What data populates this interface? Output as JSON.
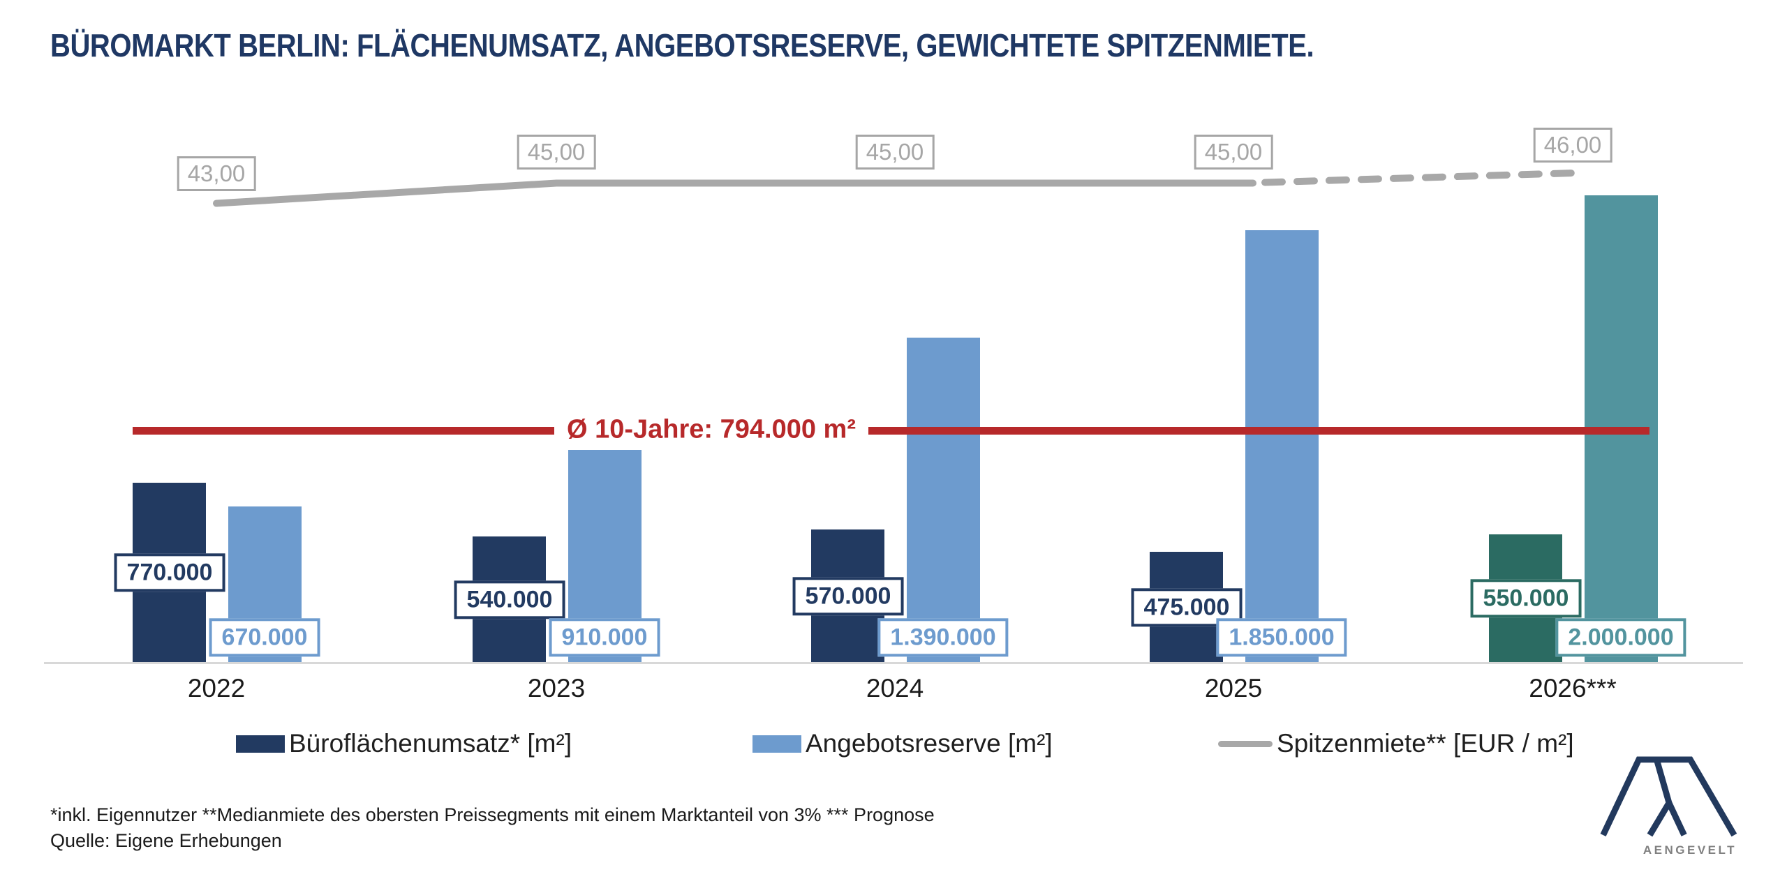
{
  "title": "BÜROMARKT BERLIN: FLÄCHENUMSATZ, ANGEBOTSRESERVE, GEWICHTETE SPITZENMIETE.",
  "chart_data": {
    "type": "bar+line combo",
    "categories": [
      "2022",
      "2023",
      "2024",
      "2025",
      "2026***"
    ],
    "series": [
      {
        "name": "Büroflächenumsatz* [m²]",
        "type": "bar",
        "values": [
          770000,
          540000,
          570000,
          475000,
          550000
        ],
        "labels": [
          "770.000",
          "540.000",
          "570.000",
          "475.000",
          "550.000"
        ],
        "color": "#223A61",
        "forecast_color": "#2B6B62"
      },
      {
        "name": "Angebotsreserve [m²]",
        "type": "bar",
        "values": [
          670000,
          910000,
          1390000,
          1850000,
          2000000
        ],
        "labels": [
          "670.000",
          "910.000",
          "1.390.000",
          "1.850.000",
          "2.000.000"
        ],
        "color": "#6D9BCE",
        "forecast_color": "#52949E"
      },
      {
        "name": "Spitzenmiete** [EUR / m²]",
        "type": "line",
        "values": [
          43,
          45,
          45,
          45,
          46
        ],
        "labels": [
          "43,00",
          "45,00",
          "45,00",
          "45,00",
          "46,00"
        ],
        "color": "#A8A8A8",
        "dashed_segment": "2025 to 2026*** (Prognose)"
      }
    ],
    "average_line": {
      "label": "Ø 10-Jahre: 794.000 m²",
      "value": 794000,
      "color": "#B7292A"
    },
    "forecast_category": "2026***",
    "grid": false,
    "legend_position": "bottom",
    "y_axis_visible": false
  },
  "legend": {
    "items": [
      {
        "label": "Büroflächenumsatz* [m²]",
        "swatch": "navy-rect"
      },
      {
        "label": "Angebotsreserve [m²]",
        "swatch": "lightblue-rect"
      },
      {
        "label": "Spitzenmiete** [EUR / m²]",
        "swatch": "gray-line"
      }
    ]
  },
  "footnotes": {
    "line1": "*inkl. Eigennutzer **Medianmiete des obersten Preissegments mit einem Marktanteil von 3% *** Prognose",
    "line2": "Quelle: Eigene Erhebungen"
  },
  "logo": {
    "text": "AENGEVELT"
  },
  "colors": {
    "title_navy": "#1F3864",
    "bar_navy": "#223A61",
    "bar_light_blue": "#6D9BCE",
    "bar_forecast_dark_teal": "#2B6B62",
    "bar_forecast_light_teal": "#52949E",
    "rent_line_gray": "#A8A8A8",
    "average_red": "#B7292A",
    "axis_gray": "#D8D8D8",
    "logo_navy": "#22395D",
    "logo_text_gray": "#808080"
  }
}
